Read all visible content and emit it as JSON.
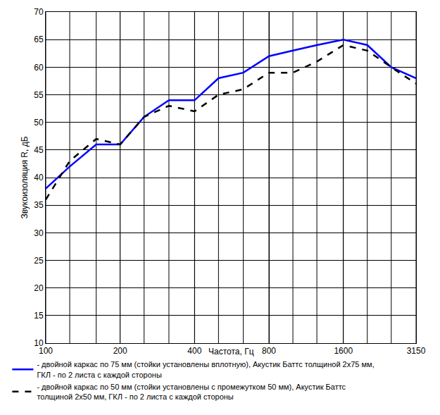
{
  "chart_data": {
    "type": "line",
    "xlabel": "Частота, Гц",
    "ylabel": "Звукоизоляция R, дБ",
    "x": [
      100,
      125,
      160,
      200,
      250,
      315,
      400,
      500,
      630,
      800,
      1000,
      1250,
      1600,
      2000,
      2500,
      3150
    ],
    "series": [
      {
        "name": "- двойной каркас по 75 мм (стойки установлены вплотную), Акустик Баттс толщиной 2х75 мм, ГКЛ - по 2 листа с каждой стороны",
        "color": "#0000ff",
        "line_style": "solid",
        "values": [
          38,
          42,
          46,
          46,
          51,
          54,
          54,
          58,
          59,
          62,
          63,
          64,
          65,
          64,
          60,
          58
        ]
      },
      {
        "name": "- двойной каркас по 50 мм (стойки установлены с промежутком 50 мм), Акустик Баттс толщиной 2х50 мм, ГКЛ - по 2 листа с каждой стороны",
        "color": "#000000",
        "line_style": "dashed",
        "values": [
          36,
          43,
          47,
          46,
          51,
          53,
          52,
          55,
          56,
          59,
          59,
          61,
          64,
          63,
          60,
          57
        ]
      }
    ],
    "xlim": [
      100,
      3150
    ],
    "ylim": [
      10,
      70
    ],
    "xticks": [
      100,
      200,
      400,
      800,
      1600,
      3150
    ],
    "yticks": [
      10,
      15,
      20,
      25,
      30,
      35,
      40,
      45,
      50,
      55,
      60,
      65,
      70
    ],
    "log": "x",
    "grid": true,
    "legend": "bottom"
  }
}
